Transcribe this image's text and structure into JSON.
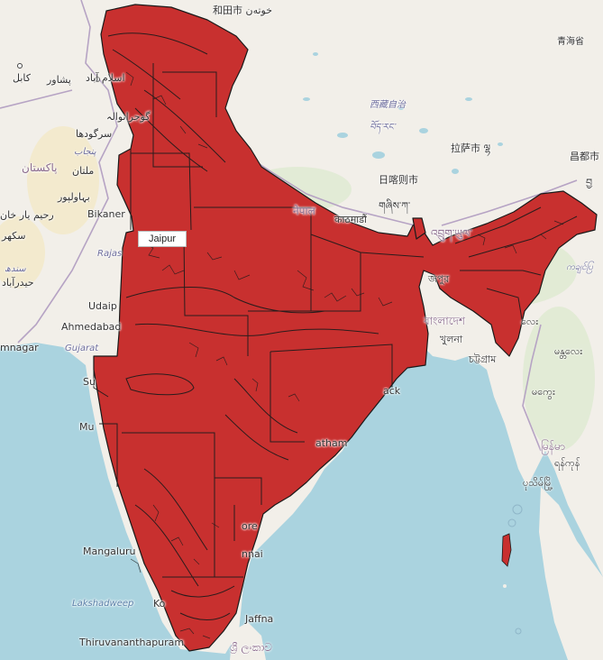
{
  "map": {
    "colors": {
      "water": "#aad3df",
      "land": "#f2efe9",
      "feature_fill": "#c8302f",
      "feature_stroke": "#1a1a1a",
      "border": "#b6a3c4"
    },
    "highlight_label": "Jaipur",
    "labels": {
      "hotan": "和田市 خوتەن",
      "qinghai": "青海省",
      "kabul": "کابل",
      "peshawar": "پشاور",
      "islamabad": "اسلام آباد",
      "gujranwala": "گوجرانوالہ",
      "sargodha": "سرگودھا",
      "punjab": "پنجاب",
      "pakistan": "پاکستان",
      "multan": "ملتان",
      "bahawalpur": "بہاولپور",
      "rahim_yar_khan": "رحیم یار خان",
      "sukkur": "سکھر",
      "sindh": "سندھ",
      "hyderabad": "حیدرآباد",
      "bikaner": "Bikaner",
      "rajasthan": "Rajas",
      "udaipur": "Udaip",
      "ahmedabad": "Ahmedabad",
      "jamnagar": "mnagar",
      "gujarat": "Gujarat",
      "surat": "Su",
      "mumbai": "Mu",
      "mangaluru": "Mangaluru",
      "lakshadweep": "Lakshadweep",
      "kochi": "Ko",
      "thiruvananthapuram": "Thiruvananthapuram",
      "jaffna": "Jaffna",
      "sri_lanka": "ශ්‍රී ලංකාව",
      "chennai": "nnai",
      "nellore": "ore",
      "vijayawada": "atham",
      "cuttack": "ack",
      "nepal": "नेपाल",
      "kathmandu": "काठमाडौं",
      "tibet_cn": "西藏自治",
      "tibet_bo": "བོད་རང་",
      "lhasa": "拉萨市 ལྷ",
      "shigatse": "日喀则市",
      "shigatse_bo": "གཞིས་ཀ་",
      "bhutan": "འབྲུག་ཡུལ་",
      "chengdu": "昌都市",
      "agartala": "জপুর",
      "bangladesh": "বাংলাদেশ",
      "khulna": "খুলনা",
      "chittagong": "চট্টগ্রাম",
      "myanmar": "ကချင်ပြ",
      "mandalay": "လေး",
      "magway": "မန္တလေး",
      "meiktila": "မကွေး",
      "naypyidaw": "မြန်မာ",
      "yangon": "ရန်ကုန်",
      "pathein": "ပုသိမ်မြို့",
      "tibet_label2": "བྱ"
    }
  }
}
